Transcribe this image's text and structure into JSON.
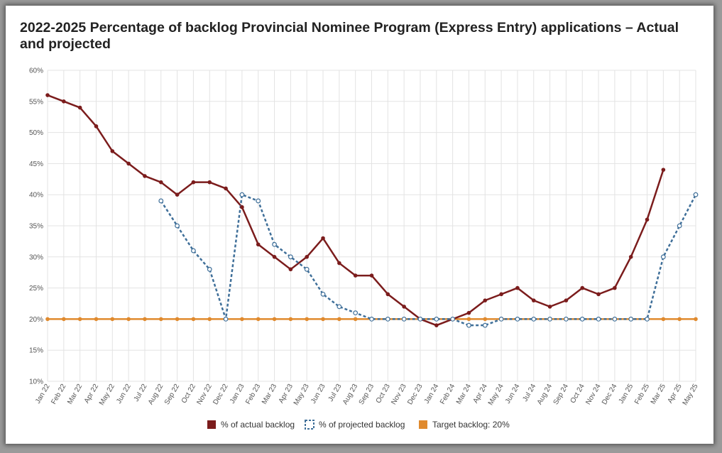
{
  "chart_data": {
    "type": "line",
    "title": "2022-2025 Percentage of backlog Provincial Nominee Program (Express Entry) applications – Actual and projected",
    "x": [
      "Jan 22",
      "Feb 22",
      "Mar 22",
      "Apr 22",
      "May 22",
      "Jun 22",
      "Jul 22",
      "Aug 22",
      "Sep 22",
      "Oct 22",
      "Nov 22",
      "Dec 22",
      "Jan 23",
      "Feb 23",
      "Mar 23",
      "Apr 23",
      "May 23",
      "Jun 23",
      "Jul 23",
      "Aug 23",
      "Sep 23",
      "Oct 23",
      "Nov 23",
      "Dec 23",
      "Jan 24",
      "Feb 24",
      "Mar 24",
      "Apr 24",
      "May 24",
      "Jun 24",
      "Jul 24",
      "Aug 24",
      "Sep 24",
      "Oct 24",
      "Nov 24",
      "Dec 24",
      "Jan 25",
      "Feb 25",
      "Mar 25",
      "Apr 25",
      "May 25"
    ],
    "y_ticks": [
      "10%",
      "15%",
      "20%",
      "25%",
      "30%",
      "35%",
      "40%",
      "45%",
      "50%",
      "55%",
      "60%"
    ],
    "ylim": [
      10,
      60
    ],
    "grid": true,
    "legend_placement": "bottom",
    "series": [
      {
        "name": "% of actual backlog",
        "color": "#7b1c1c",
        "style": "solid",
        "values": [
          56,
          55,
          54,
          51,
          47,
          45,
          43,
          42,
          40,
          42,
          42,
          41,
          38,
          32,
          30,
          28,
          30,
          33,
          29,
          27,
          27,
          24,
          22,
          20,
          19,
          20,
          21,
          23,
          24,
          25,
          23,
          22,
          23,
          25,
          24,
          25,
          30,
          36,
          44,
          null,
          null
        ]
      },
      {
        "name": "% of projected backlog",
        "color": "#3f6f99",
        "style": "dashed",
        "values": [
          null,
          null,
          null,
          null,
          null,
          null,
          null,
          39,
          35,
          31,
          28,
          20,
          40,
          39,
          32,
          30,
          28,
          24,
          22,
          21,
          20,
          20,
          20,
          20,
          20,
          20,
          19,
          19,
          20,
          20,
          20,
          20,
          20,
          20,
          20,
          20,
          20,
          20,
          30,
          35,
          40
        ]
      },
      {
        "name": "Target backlog: 20%",
        "color": "#e08a2e",
        "style": "solid",
        "values": [
          20,
          20,
          20,
          20,
          20,
          20,
          20,
          20,
          20,
          20,
          20,
          20,
          20,
          20,
          20,
          20,
          20,
          20,
          20,
          20,
          20,
          20,
          20,
          20,
          20,
          20,
          20,
          20,
          20,
          20,
          20,
          20,
          20,
          20,
          20,
          20,
          20,
          20,
          20,
          20,
          20
        ]
      }
    ]
  }
}
